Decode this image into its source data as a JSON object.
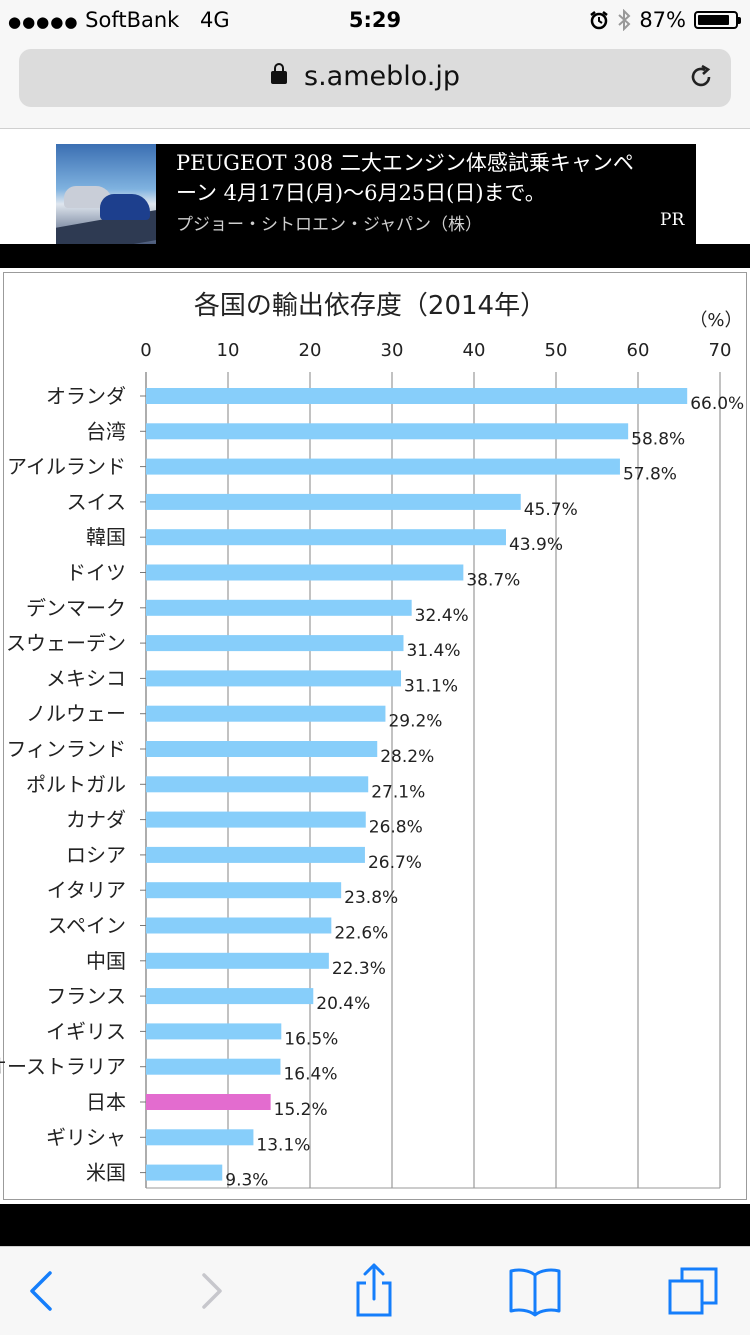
{
  "status_bar": {
    "signal": "●●●●●",
    "carrier": "SoftBank",
    "network": "4G",
    "time": "5:29",
    "battery": "87%",
    "battery_level": 0.87
  },
  "browser": {
    "url": "s.ameblo.jp"
  },
  "ad": {
    "text": "PEUGEOT 308 二大エンジン体感試乗キャンペーン 4月17日(月)〜6月25日(日)まで。",
    "sponsor": "プジョー・シトロエン・ジャパン（株）",
    "label": "PR"
  },
  "colors": {
    "bar": "#87cefa",
    "highlight": "#e36ccf",
    "accent": "#157efb"
  },
  "chart_data": {
    "type": "bar",
    "orientation": "horizontal",
    "title": "各国の輸出依存度（2014年）",
    "unit_label": "（%）",
    "xlim": [
      0,
      70
    ],
    "xticks": [
      0,
      10,
      20,
      30,
      40,
      50,
      60,
      70
    ],
    "grid": true,
    "highlight": "日本",
    "categories": [
      "オランダ",
      "台湾",
      "アイルランド",
      "スイス",
      "韓国",
      "ドイツ",
      "デンマーク",
      "スウェーデン",
      "メキシコ",
      "ノルウェー",
      "フィンランド",
      "ポルトガル",
      "カナダ",
      "ロシア",
      "イタリア",
      "スペイン",
      "中国",
      "フランス",
      "イギリス",
      "オーストラリア",
      "日本",
      "ギリシャ",
      "米国"
    ],
    "values": [
      66.0,
      58.8,
      57.8,
      45.7,
      43.9,
      38.7,
      32.4,
      31.4,
      31.1,
      29.2,
      28.2,
      27.1,
      26.8,
      26.7,
      23.8,
      22.6,
      22.3,
      20.4,
      16.5,
      16.4,
      15.2,
      13.1,
      9.3
    ],
    "labels": [
      "66.0%",
      "58.8%",
      "57.8%",
      "45.7%",
      "43.9%",
      "38.7%",
      "32.4%",
      "31.4%",
      "31.1%",
      "29.2%",
      "28.2%",
      "27.1%",
      "26.8%",
      "26.7%",
      "23.8%",
      "22.6%",
      "22.3%",
      "20.4%",
      "16.5%",
      "16.4%",
      "15.2%",
      "13.1%",
      "9.3%"
    ]
  }
}
